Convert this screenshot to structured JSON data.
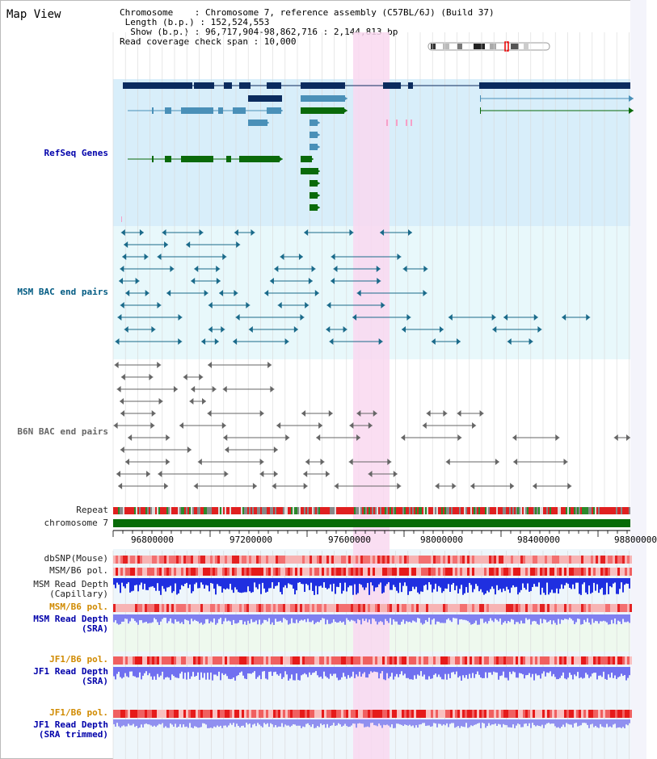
{
  "header": {
    "title": "Map View",
    "info_lines": [
      "Chromosome    : Chromosome 7, reference assembly (C57BL/6J) (Build 37)",
      " Length (b.p.) : 152,524,553",
      "  Show (b.p.) : 96,717,904-98,862,716 : 2,144,813 bp",
      "Read coverage check span : 10,000"
    ]
  },
  "tracks": {
    "refseq": "RefSeq Genes",
    "msm_bac": "MSM BAC end pairs",
    "b6n_bac": "B6N BAC end pairs",
    "repeat": "Repeat",
    "chromosome": "chromosome 7",
    "dbsnp": "dbSNP(Mouse)",
    "msm_b6_pol_1": "MSM/B6 pol.",
    "msm_read_depth_cap_1": "MSM Read Depth",
    "msm_read_depth_cap_2": "(Capillary)",
    "msm_b6_pol_2": "MSM/B6 pol.",
    "msm_read_depth_sra_1": "MSM Read Depth",
    "msm_read_depth_sra_2": "(SRA)",
    "jf1_pol_1": "JF1/B6 pol.",
    "jf1_read_depth_1": "JF1 Read Depth",
    "jf1_read_depth_2": "(SRA)",
    "jf1_pol_2": "JF1/B6 pol.",
    "jf1_read_depth_trim_1": "JF1 Read Depth",
    "jf1_read_depth_trim_2": "(SRA trimmed)"
  },
  "axis": {
    "ticks": [
      "96800000",
      "97200000",
      "97600000",
      "98000000",
      "98400000",
      "98800000"
    ]
  },
  "colors": {
    "highlight": "#f9d8f0",
    "refseq_bg": "#d8eefa",
    "dark_gene": "#0b2b5e",
    "mid_gene": "#4a90b8",
    "green_gene": "#0a6a0a",
    "msm_bg": "#e8f8fb",
    "chromosome_bar": "#086b08"
  }
}
